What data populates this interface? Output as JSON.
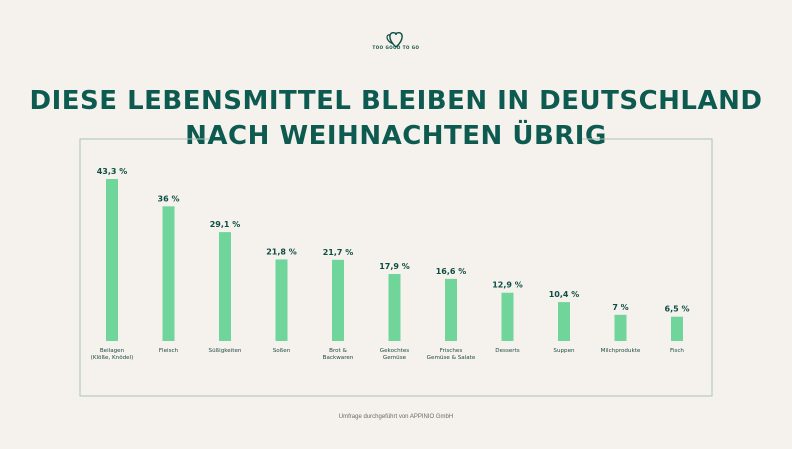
{
  "brand": {
    "logo_text": "TOO GOOD TO GO"
  },
  "header": {
    "title_line1": "DIESE LEBENSMITTEL BLEIBEN IN DEUTSCHLAND",
    "title_line2": "NACH WEIHNACHTEN ÜBRIG"
  },
  "footer": {
    "source": "Umfrage durchgeführt von APPINIO GmbH"
  },
  "colors": {
    "bar": "#6fd59a",
    "title": "#0d5a50",
    "frame": "#a9c2ba",
    "background": "#f5f1ec"
  },
  "chart_data": {
    "type": "bar",
    "title": "DIESE LEBENSMITTEL BLEIBEN IN DEUTSCHLAND NACH WEIHNACHTEN ÜBRIG",
    "xlabel": "",
    "ylabel": "",
    "ylim": [
      0,
      45
    ],
    "grid": false,
    "categories": [
      [
        "Beilagen",
        "(Klöße, Knödel)"
      ],
      [
        "Fleisch"
      ],
      [
        "Süßigkeiten"
      ],
      [
        "Soßen"
      ],
      [
        "Brot &",
        "Backwaren"
      ],
      [
        "Gekochtes",
        "Gemüse"
      ],
      [
        "Frisches",
        "Gemüse & Salate"
      ],
      [
        "Desserts"
      ],
      [
        "Suppen"
      ],
      [
        "Milchprodukte"
      ],
      [
        "Fisch"
      ]
    ],
    "values": [
      43.3,
      36,
      29.1,
      21.8,
      21.7,
      17.9,
      16.6,
      12.9,
      10.4,
      7,
      6.5
    ],
    "labels": [
      "43,3 %",
      "36 %",
      "29,1 %",
      "21,8 %",
      "21,7 %",
      "17,9 %",
      "16,6 %",
      "12,9 %",
      "10,4 %",
      "7 %",
      "6,5 %"
    ]
  }
}
